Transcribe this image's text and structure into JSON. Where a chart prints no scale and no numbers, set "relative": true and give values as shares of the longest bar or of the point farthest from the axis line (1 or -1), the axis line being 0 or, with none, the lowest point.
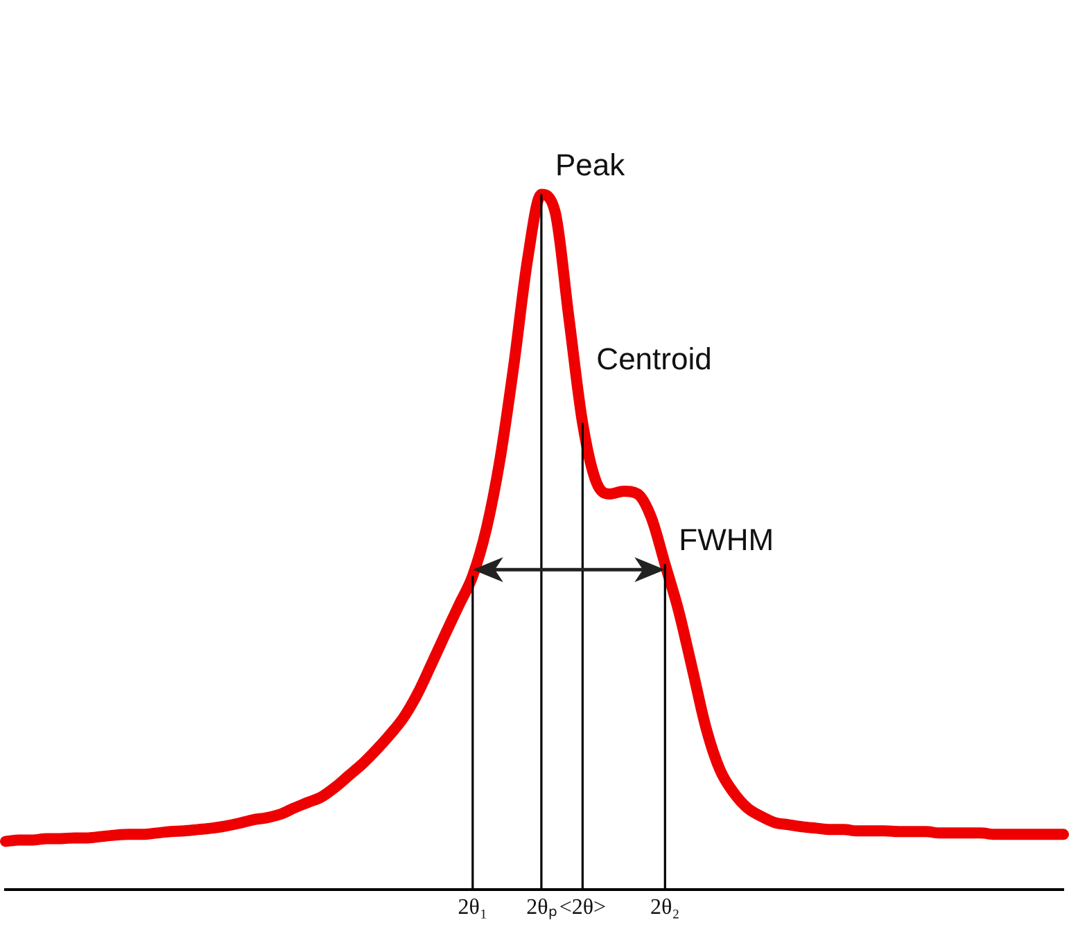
{
  "chart_data": {
    "type": "line",
    "relative": true,
    "categories": [
      null,
      null,
      null,
      null,
      null,
      null,
      null,
      null,
      null,
      null,
      null,
      null,
      null,
      null,
      null,
      null,
      null,
      null,
      null,
      null,
      null,
      null,
      null,
      null,
      null,
      null,
      null,
      null,
      null,
      null,
      null,
      null,
      null,
      null,
      "2θ₁",
      null,
      null,
      null,
      null,
      "2θₚ",
      null,
      null,
      "<2θ>",
      null,
      null,
      null,
      null,
      null,
      "2θ₂",
      null,
      null,
      null,
      null,
      null,
      null,
      null,
      null,
      null,
      null,
      null,
      null,
      null,
      null,
      null,
      null,
      null,
      null,
      null,
      null,
      null,
      null,
      null,
      null,
      null,
      null,
      null,
      null,
      null
    ],
    "series": [
      {
        "color": "#ee0000",
        "values": [
          0.069,
          0.071,
          0.071,
          0.073,
          0.073,
          0.074,
          0.074,
          0.076,
          0.078,
          0.079,
          0.079,
          0.081,
          0.083,
          0.084,
          0.086,
          0.088,
          0.091,
          0.095,
          0.1,
          0.103,
          0.108,
          0.117,
          0.125,
          0.133,
          0.147,
          0.164,
          0.181,
          0.201,
          0.223,
          0.248,
          0.282,
          0.324,
          0.367,
          0.409,
          0.451,
          0.519,
          0.62,
          0.755,
          0.907,
          1,
          0.975,
          0.823,
          0.671,
          0.586,
          0.569,
          0.573,
          0.569,
          0.535,
          0.468,
          0.4,
          0.316,
          0.231,
          0.172,
          0.139,
          0.117,
          0.105,
          0.096,
          0.093,
          0.09,
          0.088,
          0.086,
          0.086,
          0.084,
          0.084,
          0.084,
          0.083,
          0.083,
          0.083,
          0.081,
          0.081,
          0.081,
          0.081,
          0.079,
          0.079,
          0.079,
          0.079,
          0.079,
          0.079
        ]
      }
    ],
    "ref_lines": [
      {
        "axis": "x",
        "value": "2θ₁",
        "color": "#000000"
      },
      {
        "axis": "x",
        "value": "2θₚ",
        "color": "#000000"
      },
      {
        "axis": "x",
        "value": "<2θ>",
        "color": "#000000"
      },
      {
        "axis": "x",
        "value": "2θ₂",
        "color": "#000000"
      }
    ],
    "annotations": [
      {
        "text": "Peak",
        "x": "2θₚ",
        "y": 1
      },
      {
        "text": "Centroid",
        "x": "<2θ>",
        "y": 0.72
      },
      {
        "text": "FWHM",
        "x": "2θ₂",
        "y": 0.46
      }
    ],
    "grid": false,
    "legend": false,
    "marker": "none",
    "line_style": "solid"
  }
}
